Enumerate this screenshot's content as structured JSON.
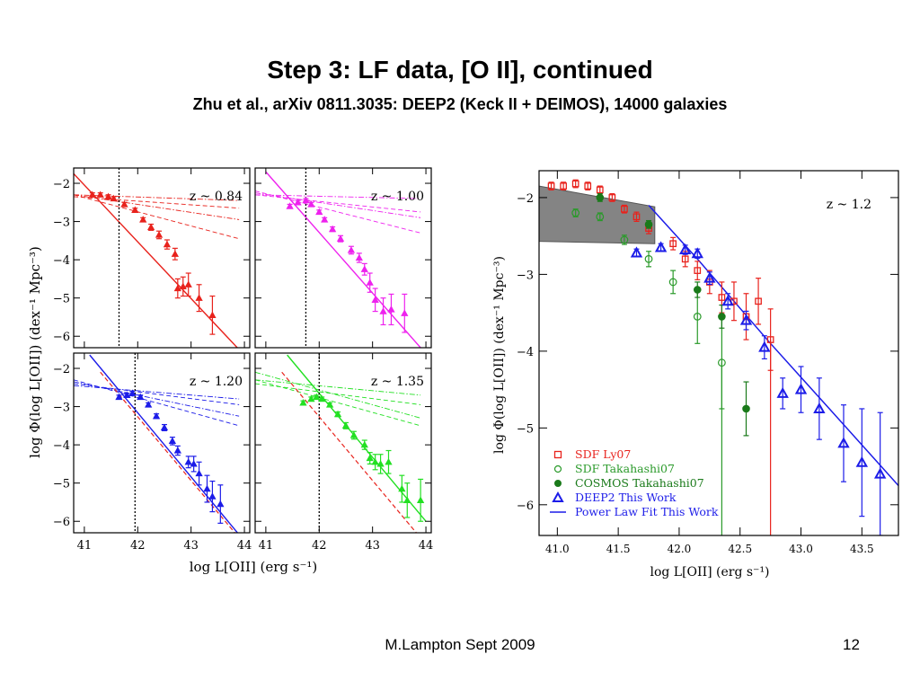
{
  "slide": {
    "title": "Step 3: LF data,  [O II], continued",
    "subtitle": "Zhu et al., arXiv 0811.3035: DEEP2 (Keck II + DEIMOS), 14000 galaxies",
    "footer_author": "M.Lampton Sept 2009",
    "page_number": "12"
  },
  "chart_data": [
    {
      "type": "scatter",
      "panel": "left-grid",
      "xlabel": "log L[OII] (erg s⁻¹)",
      "ylabel": "log Φ(log L[OII]) (dex⁻¹ Mpc⁻³)",
      "xlim": [
        40.8,
        44.1
      ],
      "ylim": [
        -6.3,
        -1.6
      ],
      "xticks": [
        "41",
        "42",
        "43",
        "44"
      ],
      "yticks": [
        "-2",
        "-3",
        "-4",
        "-5",
        "-6"
      ],
      "subplots": [
        {
          "label": "z ~ 0.84",
          "color": "#e8221c",
          "cutoff": 41.65,
          "points": [
            [
              41.15,
              -2.3
            ],
            [
              41.3,
              -2.3
            ],
            [
              41.45,
              -2.35
            ],
            [
              41.55,
              -2.4
            ],
            [
              41.75,
              -2.55
            ],
            [
              41.95,
              -2.7
            ],
            [
              42.1,
              -2.95
            ],
            [
              42.25,
              -3.15
            ],
            [
              42.4,
              -3.35
            ],
            [
              42.55,
              -3.6
            ],
            [
              42.7,
              -3.85
            ],
            [
              42.75,
              -4.75
            ],
            [
              42.85,
              -4.7
            ],
            [
              42.95,
              -4.65
            ],
            [
              43.15,
              -5.0
            ],
            [
              43.4,
              -5.45
            ]
          ],
          "errors": [
            0.05,
            0.05,
            0.05,
            0.05,
            0.05,
            0.05,
            0.05,
            0.08,
            0.1,
            0.12,
            0.15,
            0.25,
            0.25,
            0.3,
            0.35,
            0.5
          ],
          "fit": [
            [
              40.8,
              -1.75
            ],
            [
              43.9,
              -6.35
            ]
          ],
          "dashed": [
            [
              [
                40.8,
                -2.3
              ],
              [
                43.9,
                -3.45
              ]
            ],
            [
              [
                40.8,
                -2.35
              ],
              [
                43.9,
                -2.65
              ]
            ]
          ],
          "dashdot": [
            [
              [
                40.8,
                -2.3
              ],
              [
                43.9,
                -2.95
              ]
            ],
            [
              [
                40.8,
                -2.3
              ],
              [
                43.9,
                -2.45
              ]
            ]
          ]
        },
        {
          "label": "z ~ 1.00",
          "color": "#ee22ee",
          "cutoff": 41.75,
          "points": [
            [
              41.45,
              -2.6
            ],
            [
              41.6,
              -2.5
            ],
            [
              41.75,
              -2.45
            ],
            [
              41.85,
              -2.55
            ],
            [
              42.0,
              -2.75
            ],
            [
              42.1,
              -2.95
            ],
            [
              42.25,
              -3.2
            ],
            [
              42.4,
              -3.45
            ],
            [
              42.6,
              -3.75
            ],
            [
              42.75,
              -3.95
            ],
            [
              42.85,
              -4.25
            ],
            [
              42.95,
              -4.6
            ],
            [
              43.05,
              -5.05
            ],
            [
              43.2,
              -5.35
            ],
            [
              43.35,
              -5.3
            ],
            [
              43.6,
              -5.4
            ]
          ],
          "errors": [
            0.05,
            0.05,
            0.05,
            0.05,
            0.05,
            0.05,
            0.06,
            0.08,
            0.1,
            0.12,
            0.15,
            0.25,
            0.3,
            0.35,
            0.4,
            0.5
          ],
          "fit": [
            [
              41.0,
              -1.7
            ],
            [
              43.9,
              -6.3
            ]
          ],
          "dashed": [
            [
              [
                40.8,
                -2.2
              ],
              [
                43.9,
                -3.3
              ]
            ],
            [
              [
                40.8,
                -2.3
              ],
              [
                43.9,
                -2.75
              ]
            ]
          ],
          "dashdot": [
            [
              [
                40.8,
                -2.25
              ],
              [
                43.9,
                -2.9
              ]
            ],
            [
              [
                40.8,
                -2.3
              ],
              [
                43.9,
                -2.4
              ]
            ]
          ]
        },
        {
          "label": "z ~ 1.20",
          "color": "#1c1ce8",
          "cutoff": 41.95,
          "points": [
            [
              41.65,
              -2.75
            ],
            [
              41.8,
              -2.7
            ],
            [
              41.9,
              -2.65
            ],
            [
              42.05,
              -2.75
            ],
            [
              42.2,
              -2.95
            ],
            [
              42.35,
              -3.25
            ],
            [
              42.5,
              -3.55
            ],
            [
              42.65,
              -3.9
            ],
            [
              42.75,
              -4.15
            ],
            [
              42.95,
              -4.45
            ],
            [
              43.05,
              -4.5
            ],
            [
              43.15,
              -4.75
            ],
            [
              43.3,
              -5.15
            ],
            [
              43.4,
              -5.35
            ],
            [
              43.55,
              -5.55
            ]
          ],
          "errors": [
            0.05,
            0.05,
            0.05,
            0.05,
            0.05,
            0.06,
            0.08,
            0.1,
            0.12,
            0.15,
            0.2,
            0.3,
            0.35,
            0.4,
            0.5
          ],
          "fit": [
            [
              41.1,
              -1.65
            ],
            [
              43.9,
              -6.35
            ]
          ],
          "red_dashed": [
            [
              41.3,
              -2.1
            ],
            [
              43.85,
              -6.35
            ]
          ],
          "dashed": [
            [
              [
                40.8,
                -2.3
              ],
              [
                43.9,
                -3.5
              ]
            ],
            [
              [
                40.8,
                -2.4
              ],
              [
                43.9,
                -2.95
              ]
            ]
          ],
          "dashdot": [
            [
              [
                40.8,
                -2.35
              ],
              [
                43.9,
                -3.25
              ]
            ],
            [
              [
                40.8,
                -2.45
              ],
              [
                43.9,
                -2.8
              ]
            ]
          ]
        },
        {
          "label": "z ~ 1.35",
          "color": "#22e022",
          "cutoff": 42.0,
          "points": [
            [
              41.7,
              -2.9
            ],
            [
              41.85,
              -2.8
            ],
            [
              41.95,
              -2.75
            ],
            [
              42.05,
              -2.8
            ],
            [
              42.2,
              -2.95
            ],
            [
              42.35,
              -3.2
            ],
            [
              42.5,
              -3.5
            ],
            [
              42.65,
              -3.75
            ],
            [
              42.85,
              -4.0
            ],
            [
              42.95,
              -4.35
            ],
            [
              43.05,
              -4.45
            ],
            [
              43.15,
              -4.5
            ],
            [
              43.3,
              -4.45
            ],
            [
              43.55,
              -5.15
            ],
            [
              43.65,
              -5.45
            ],
            [
              43.9,
              -5.45
            ]
          ],
          "errors": [
            0.05,
            0.05,
            0.05,
            0.05,
            0.05,
            0.06,
            0.08,
            0.1,
            0.12,
            0.15,
            0.2,
            0.25,
            0.3,
            0.35,
            0.45,
            0.55
          ],
          "fit": [
            [
              41.4,
              -1.65
            ],
            [
              44.0,
              -6.0
            ]
          ],
          "red_dashed": [
            [
              41.3,
              -2.1
            ],
            [
              43.85,
              -6.35
            ]
          ],
          "dashed": [
            [
              [
                40.8,
                -2.3
              ],
              [
                43.9,
                -3.5
              ]
            ],
            [
              [
                40.8,
                -2.4
              ],
              [
                43.9,
                -2.95
              ]
            ]
          ],
          "dashdot": [
            [
              [
                40.8,
                -2.1
              ],
              [
                43.9,
                -3.3
              ]
            ],
            [
              [
                40.8,
                -2.3
              ],
              [
                43.9,
                -2.7
              ]
            ]
          ]
        }
      ]
    },
    {
      "type": "scatter",
      "panel": "right",
      "label": "z ~ 1.2",
      "xlabel": "log L[OII] (erg s⁻¹)",
      "ylabel": "log Φ(log L[OII]) (dex⁻¹ Mpc⁻³)",
      "xlim": [
        40.85,
        43.8
      ],
      "ylim": [
        -6.4,
        -1.65
      ],
      "xticks": [
        "41.0",
        "41.5",
        "42.0",
        "42.5",
        "43.0",
        "43.5"
      ],
      "yticks": [
        "-2",
        "-3",
        "-4",
        "-5",
        "-6"
      ],
      "band": [
        [
          40.85,
          -1.85
        ],
        [
          41.8,
          -2.12
        ],
        [
          41.8,
          -2.6
        ],
        [
          40.85,
          -2.57
        ]
      ],
      "fit": [
        [
          41.75,
          -2.1
        ],
        [
          42.15,
          -2.8
        ],
        [
          42.75,
          -3.9
        ],
        [
          43.25,
          -4.78
        ],
        [
          43.8,
          -5.75
        ]
      ],
      "series": [
        {
          "name": "SDF Ly07",
          "color": "#e8221c",
          "marker": "open-square",
          "points": [
            [
              40.95,
              -1.85
            ],
            [
              41.05,
              -1.85
            ],
            [
              41.15,
              -1.82
            ],
            [
              41.25,
              -1.85
            ],
            [
              41.35,
              -1.9
            ],
            [
              41.45,
              -2.0
            ],
            [
              41.55,
              -2.15
            ],
            [
              41.65,
              -2.25
            ],
            [
              41.75,
              -2.4
            ],
            [
              41.95,
              -2.6
            ],
            [
              42.05,
              -2.8
            ],
            [
              42.15,
              -2.95
            ],
            [
              42.25,
              -3.1
            ],
            [
              42.35,
              -3.3
            ],
            [
              42.45,
              -3.35
            ],
            [
              42.55,
              -3.55
            ],
            [
              42.65,
              -3.35
            ],
            [
              42.75,
              -3.85
            ]
          ],
          "errors": [
            0.05,
            0.05,
            0.05,
            0.05,
            0.05,
            0.05,
            0.05,
            0.06,
            0.07,
            0.08,
            0.1,
            0.12,
            0.15,
            0.2,
            0.25,
            0.3,
            0.3,
            0.4
          ]
        },
        {
          "name": "SDF Takahashi07",
          "color": "#2a9a2a",
          "marker": "open-circle",
          "points": [
            [
              41.15,
              -2.2
            ],
            [
              41.35,
              -2.25
            ],
            [
              41.55,
              -2.55
            ],
            [
              41.75,
              -2.8
            ],
            [
              41.95,
              -3.1
            ],
            [
              42.15,
              -3.55
            ],
            [
              42.35,
              -4.15
            ]
          ],
          "errors": [
            0.05,
            0.05,
            0.06,
            0.1,
            0.15,
            0.35,
            0.6
          ]
        },
        {
          "name": "COSMOS Takahashi07",
          "color": "#1a7a1a",
          "marker": "filled-circle",
          "points": [
            [
              41.35,
              -2.0
            ],
            [
              41.75,
              -2.35
            ],
            [
              42.15,
              -3.2
            ],
            [
              42.35,
              -3.55
            ],
            [
              42.55,
              -4.75
            ]
          ],
          "errors": [
            0.05,
            0.05,
            0.1,
            0.15,
            0.35
          ]
        },
        {
          "name": "DEEP2 This Work",
          "color": "#1c1ce8",
          "marker": "open-triangle",
          "points": [
            [
              41.65,
              -2.72
            ],
            [
              41.85,
              -2.65
            ],
            [
              42.05,
              -2.68
            ],
            [
              42.15,
              -2.73
            ],
            [
              42.25,
              -3.05
            ],
            [
              42.4,
              -3.35
            ],
            [
              42.55,
              -3.6
            ],
            [
              42.7,
              -3.95
            ],
            [
              42.85,
              -4.55
            ],
            [
              43.0,
              -4.5
            ],
            [
              43.15,
              -4.75
            ],
            [
              43.35,
              -5.2
            ],
            [
              43.5,
              -5.45
            ],
            [
              43.65,
              -5.6
            ]
          ],
          "errors": [
            0.05,
            0.05,
            0.06,
            0.06,
            0.08,
            0.1,
            0.12,
            0.15,
            0.2,
            0.3,
            0.4,
            0.5,
            0.7,
            0.8
          ]
        },
        {
          "name": "Power Law Fit This Work",
          "color": "#1c1ce8",
          "marker": "line"
        }
      ]
    }
  ]
}
